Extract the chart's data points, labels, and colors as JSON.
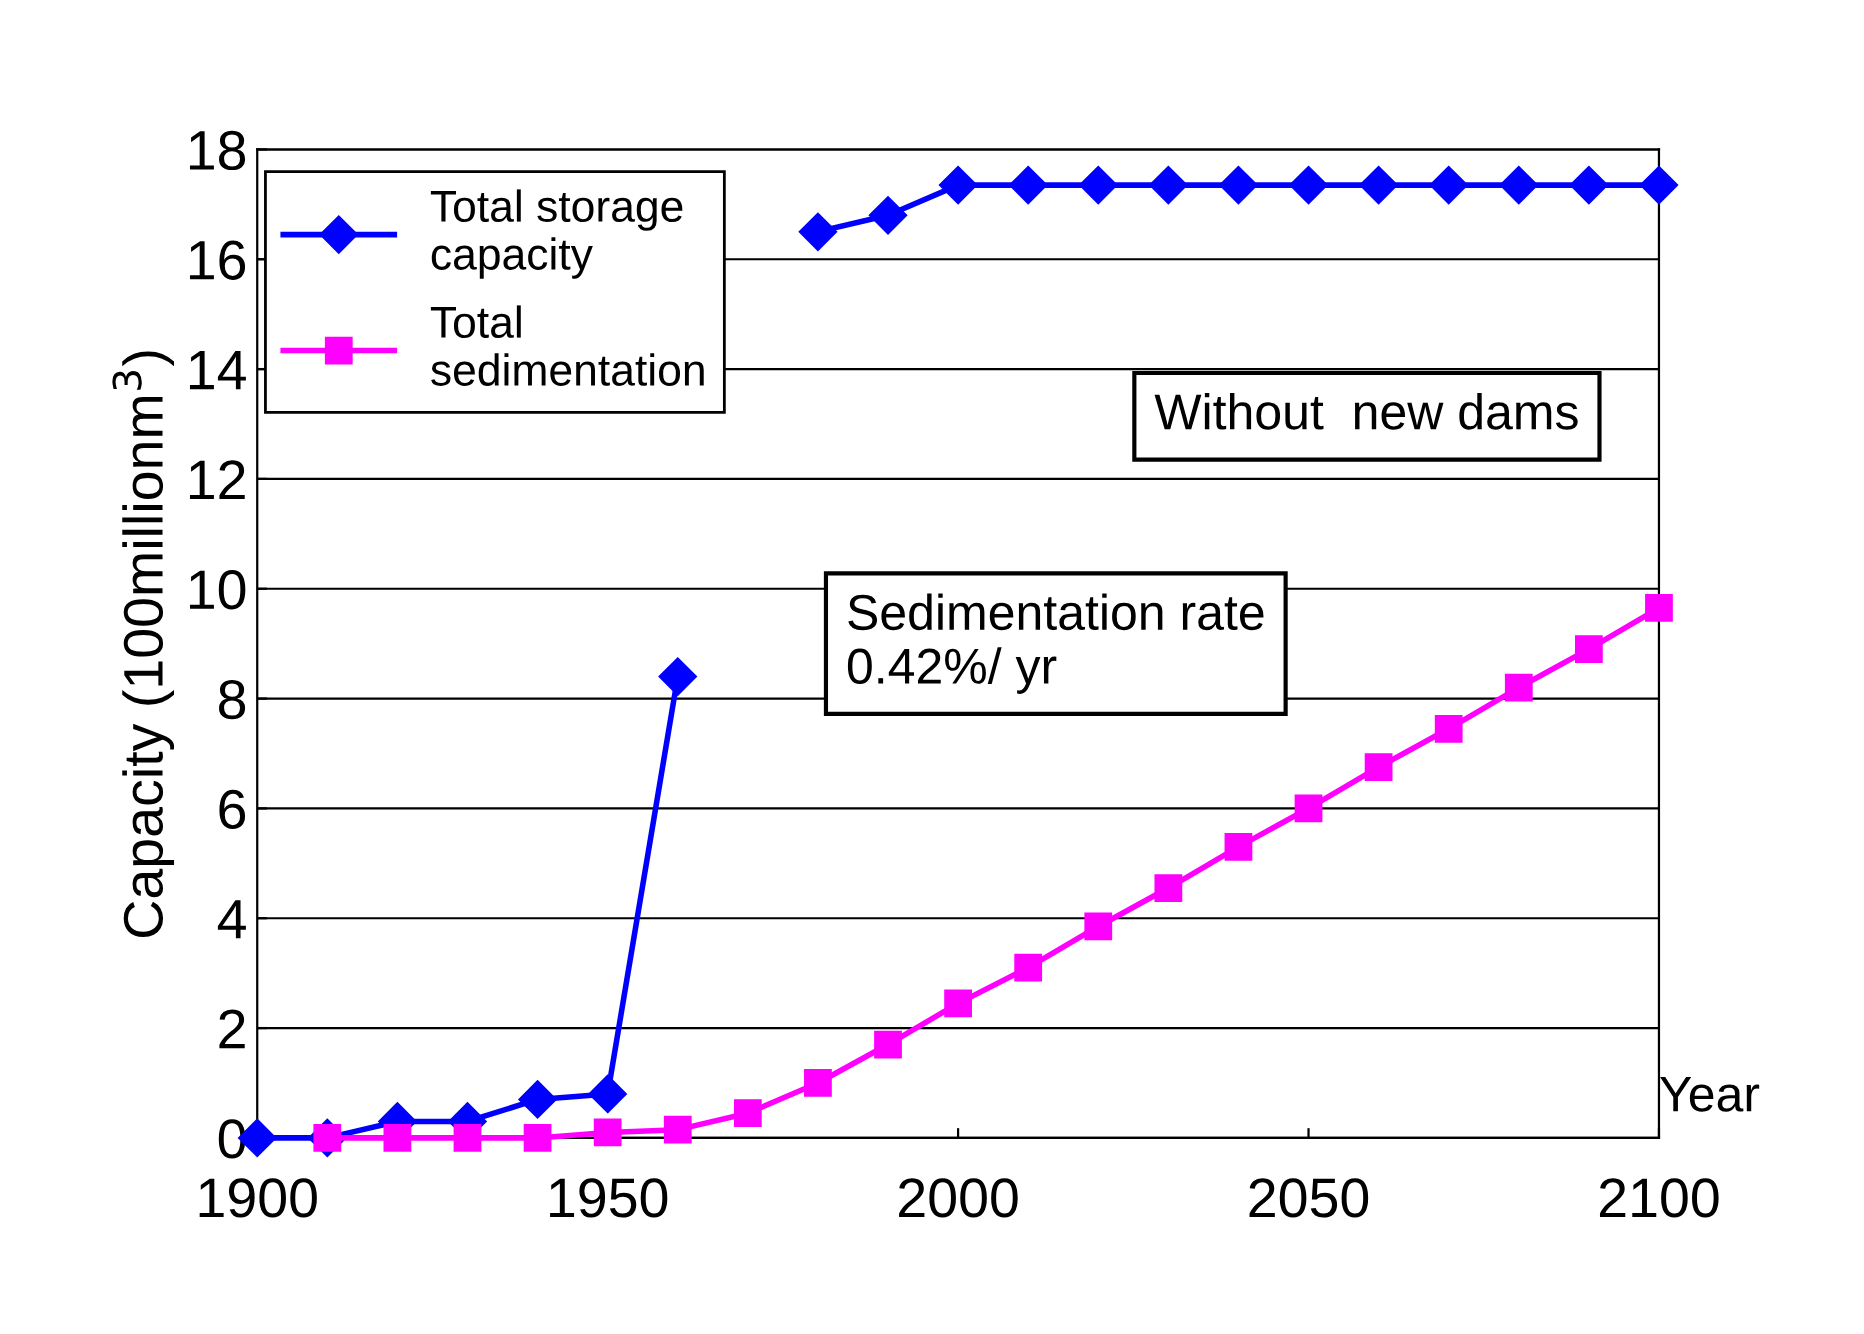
{
  "chart_data": {
    "type": "line",
    "xlabel": "Year",
    "ylabel": "Capacity (100millionm$^{3}$)",
    "x": [
      1900,
      1910,
      1920,
      1930,
      1940,
      1950,
      1960,
      1970,
      1980,
      1990,
      2000,
      2010,
      2020,
      2030,
      2040,
      2050,
      2060,
      2070,
      2080,
      2090,
      2100
    ],
    "series": [
      {
        "name": "Total storage\ncapacity",
        "color": "#0000ff",
        "marker": "diamond",
        "values": [
          0,
          0,
          0.3,
          0.3,
          0.7,
          0.8,
          8.4,
          null,
          16.5,
          16.8,
          17.35,
          17.35,
          17.35,
          17.35,
          17.35,
          17.35,
          17.35,
          17.35,
          17.35,
          17.35,
          17.35
        ]
      },
      {
        "name": "Total\nsedimentation",
        "color": "#ff00ff",
        "marker": "square",
        "values": [
          null,
          0,
          0,
          0,
          0,
          0.1,
          0.15,
          0.45,
          1.0,
          1.7,
          2.45,
          3.1,
          3.85,
          4.55,
          5.3,
          6.0,
          6.75,
          7.45,
          8.2,
          8.9,
          9.65
        ]
      }
    ],
    "xlim": [
      1900,
      2100
    ],
    "xticks": [
      1900,
      1950,
      2000,
      2050,
      2100
    ],
    "ylim": [
      0,
      18
    ],
    "yticks": [
      0,
      2,
      4,
      6,
      8,
      10,
      12,
      14,
      16,
      18
    ],
    "grid": "y",
    "legend": "top left",
    "annotations": [
      "Without  new dams",
      "Sedimentation rate\n0.42%/ yr"
    ]
  }
}
